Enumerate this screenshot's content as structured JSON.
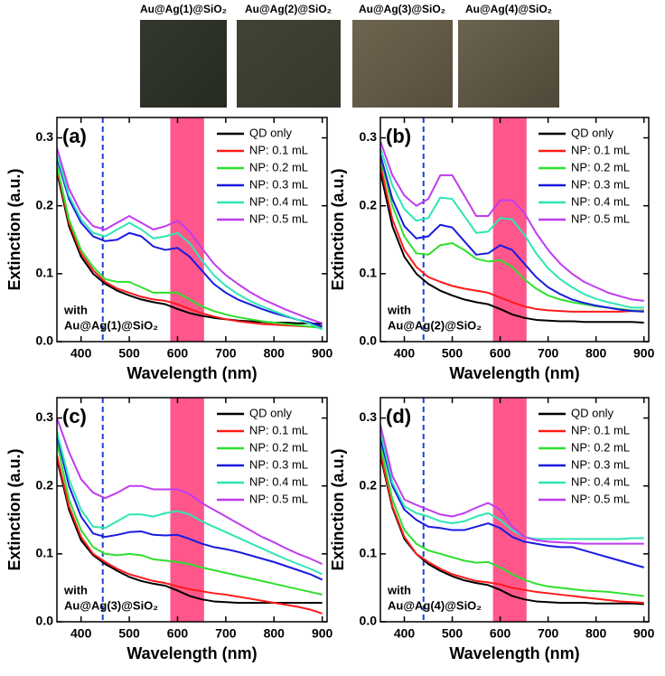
{
  "photos": {
    "labels": [
      "Au@Ag(1)@SiO₂",
      "Au@Ag(2)@SiO₂",
      "Au@Ag(3)@SiO₂",
      "Au@Ag(4)@SiO₂"
    ]
  },
  "chart_data": [
    {
      "type": "line",
      "panel_label": "(a)",
      "annotation": [
        "with",
        "Au@Ag(1)@SiO₂"
      ],
      "x_label": "Wavelength (nm)",
      "y_label": "Extinction (a.u.)",
      "xlim": [
        350,
        910
      ],
      "ylim": [
        0,
        0.33
      ],
      "xticks": [
        400,
        500,
        600,
        700,
        800,
        900
      ],
      "yticks": [
        {
          "value": 0,
          "label": "0.0"
        },
        0.1,
        0.2,
        0.3
      ],
      "legend": "upper right",
      "vline": 445,
      "vline_color": "#1f3fd8",
      "band": [
        585,
        655
      ],
      "band_color": "#ff2d6e",
      "x": [
        350,
        375,
        400,
        425,
        450,
        475,
        500,
        525,
        550,
        575,
        600,
        625,
        650,
        675,
        700,
        725,
        750,
        775,
        800,
        825,
        850,
        875,
        900
      ],
      "series": [
        {
          "name": "QD only",
          "color": "#000000",
          "values": [
            0.25,
            0.17,
            0.125,
            0.1,
            0.085,
            0.075,
            0.068,
            0.062,
            0.058,
            0.055,
            0.048,
            0.042,
            0.038,
            0.035,
            0.033,
            0.031,
            0.03,
            0.029,
            0.028,
            0.028,
            0.027,
            0.027,
            0.026
          ]
        },
        {
          "name": "NP: 0.1 mL",
          "color": "#ff1a1a",
          "values": [
            0.255,
            0.175,
            0.13,
            0.105,
            0.088,
            0.078,
            0.072,
            0.066,
            0.062,
            0.06,
            0.055,
            0.048,
            0.042,
            0.037,
            0.033,
            0.03,
            0.028,
            0.026,
            0.025,
            0.024,
            0.023,
            0.022,
            0.021
          ]
        },
        {
          "name": "NP: 0.2 mL",
          "color": "#2ee02e",
          "values": [
            0.26,
            0.18,
            0.135,
            0.11,
            0.092,
            0.088,
            0.088,
            0.08,
            0.072,
            0.072,
            0.072,
            0.062,
            0.052,
            0.045,
            0.04,
            0.036,
            0.033,
            0.03,
            0.028,
            0.026,
            0.024,
            0.022,
            0.02
          ]
        },
        {
          "name": "NP: 0.3 mL",
          "color": "#1a1ae0",
          "values": [
            0.27,
            0.21,
            0.175,
            0.155,
            0.148,
            0.15,
            0.16,
            0.155,
            0.14,
            0.135,
            0.138,
            0.125,
            0.105,
            0.085,
            0.072,
            0.062,
            0.055,
            0.048,
            0.042,
            0.037,
            0.032,
            0.028,
            0.022
          ]
        },
        {
          "name": "NP: 0.4 mL",
          "color": "#2ee6b4",
          "values": [
            0.275,
            0.215,
            0.18,
            0.16,
            0.155,
            0.165,
            0.175,
            0.165,
            0.152,
            0.155,
            0.16,
            0.145,
            0.12,
            0.098,
            0.082,
            0.07,
            0.06,
            0.052,
            0.045,
            0.038,
            0.032,
            0.026,
            0.018
          ]
        },
        {
          "name": "NP: 0.5 mL",
          "color": "#c03cf0",
          "values": [
            0.285,
            0.225,
            0.19,
            0.17,
            0.165,
            0.175,
            0.185,
            0.175,
            0.165,
            0.17,
            0.178,
            0.162,
            0.138,
            0.115,
            0.098,
            0.085,
            0.073,
            0.063,
            0.055,
            0.047,
            0.04,
            0.033,
            0.027
          ]
        }
      ]
    },
    {
      "type": "line",
      "panel_label": "(b)",
      "annotation": [
        "with",
        "Au@Ag(2)@SiO₂"
      ],
      "x_label": "Wavelength (nm)",
      "y_label": "Extinction (a.u.)",
      "xlim": [
        350,
        910
      ],
      "ylim": [
        0,
        0.33
      ],
      "xticks": [
        400,
        500,
        600,
        700,
        800,
        900
      ],
      "yticks": [
        {
          "value": 0,
          "label": "0.0"
        },
        0.1,
        0.2,
        0.3
      ],
      "legend": "upper right",
      "vline": 440,
      "vline_color": "#1f3fd8",
      "band": [
        585,
        655
      ],
      "band_color": "#ff2d6e",
      "x": [
        350,
        375,
        400,
        425,
        450,
        475,
        500,
        525,
        550,
        575,
        600,
        625,
        650,
        675,
        700,
        725,
        750,
        775,
        800,
        825,
        850,
        875,
        900
      ],
      "series": [
        {
          "name": "QD only",
          "color": "#000000",
          "values": [
            0.25,
            0.17,
            0.125,
            0.1,
            0.085,
            0.075,
            0.068,
            0.062,
            0.058,
            0.055,
            0.048,
            0.04,
            0.035,
            0.032,
            0.031,
            0.03,
            0.03,
            0.029,
            0.029,
            0.029,
            0.029,
            0.029,
            0.028
          ]
        },
        {
          "name": "NP: 0.1 mL",
          "color": "#ff1a1a",
          "values": [
            0.26,
            0.18,
            0.135,
            0.11,
            0.095,
            0.088,
            0.082,
            0.078,
            0.075,
            0.072,
            0.065,
            0.058,
            0.052,
            0.048,
            0.046,
            0.045,
            0.044,
            0.044,
            0.044,
            0.044,
            0.044,
            0.045,
            0.046
          ]
        },
        {
          "name": "NP: 0.2 mL",
          "color": "#2ee02e",
          "values": [
            0.27,
            0.2,
            0.155,
            0.13,
            0.128,
            0.142,
            0.145,
            0.135,
            0.122,
            0.118,
            0.12,
            0.11,
            0.092,
            0.078,
            0.068,
            0.062,
            0.058,
            0.055,
            0.052,
            0.05,
            0.048,
            0.046,
            0.045
          ]
        },
        {
          "name": "NP: 0.3 mL",
          "color": "#1a1ae0",
          "values": [
            0.275,
            0.21,
            0.17,
            0.152,
            0.155,
            0.172,
            0.168,
            0.148,
            0.128,
            0.13,
            0.142,
            0.135,
            0.115,
            0.095,
            0.08,
            0.07,
            0.062,
            0.057,
            0.053,
            0.05,
            0.047,
            0.045,
            0.044
          ]
        },
        {
          "name": "NP: 0.4 mL",
          "color": "#2ee6b4",
          "values": [
            0.285,
            0.23,
            0.195,
            0.178,
            0.182,
            0.212,
            0.21,
            0.185,
            0.16,
            0.162,
            0.182,
            0.18,
            0.158,
            0.13,
            0.108,
            0.092,
            0.08,
            0.07,
            0.063,
            0.058,
            0.054,
            0.05,
            0.05
          ]
        },
        {
          "name": "NP: 0.5 mL",
          "color": "#c03cf0",
          "values": [
            0.295,
            0.245,
            0.215,
            0.2,
            0.21,
            0.245,
            0.245,
            0.215,
            0.185,
            0.185,
            0.208,
            0.208,
            0.19,
            0.16,
            0.135,
            0.115,
            0.1,
            0.088,
            0.08,
            0.072,
            0.067,
            0.062,
            0.06
          ]
        }
      ]
    },
    {
      "type": "line",
      "panel_label": "(c)",
      "annotation": [
        "with",
        "Au@Ag(3)@SiO₂"
      ],
      "x_label": "Wavelength (nm)",
      "y_label": "Extinction (a.u.)",
      "xlim": [
        350,
        910
      ],
      "ylim": [
        0,
        0.33
      ],
      "xticks": [
        400,
        500,
        600,
        700,
        800,
        900
      ],
      "yticks": [
        {
          "value": 0,
          "label": "0.0"
        },
        0.1,
        0.2,
        0.3
      ],
      "legend": "upper right",
      "vline": 445,
      "vline_color": "#1f3fd8",
      "band": [
        585,
        655
      ],
      "band_color": "#ff2d6e",
      "x": [
        350,
        375,
        400,
        425,
        450,
        475,
        500,
        525,
        550,
        575,
        600,
        625,
        650,
        675,
        700,
        725,
        750,
        775,
        800,
        825,
        850,
        875,
        900
      ],
      "series": [
        {
          "name": "QD only",
          "color": "#000000",
          "values": [
            0.24,
            0.165,
            0.12,
            0.098,
            0.085,
            0.075,
            0.066,
            0.06,
            0.056,
            0.053,
            0.046,
            0.038,
            0.033,
            0.03,
            0.029,
            0.028,
            0.028,
            0.028,
            0.028,
            0.028,
            0.028,
            0.028,
            0.028
          ]
        },
        {
          "name": "NP: 0.1 mL",
          "color": "#ff1a1a",
          "values": [
            0.245,
            0.17,
            0.125,
            0.1,
            0.088,
            0.078,
            0.07,
            0.065,
            0.06,
            0.057,
            0.052,
            0.048,
            0.045,
            0.042,
            0.04,
            0.037,
            0.034,
            0.031,
            0.028,
            0.025,
            0.022,
            0.018,
            0.012
          ]
        },
        {
          "name": "NP: 0.2 mL",
          "color": "#2ee02e",
          "values": [
            0.265,
            0.18,
            0.135,
            0.11,
            0.1,
            0.098,
            0.1,
            0.098,
            0.092,
            0.09,
            0.088,
            0.085,
            0.08,
            0.076,
            0.072,
            0.068,
            0.064,
            0.06,
            0.056,
            0.052,
            0.048,
            0.044,
            0.04
          ]
        },
        {
          "name": "NP: 0.3 mL",
          "color": "#1a1ae0",
          "values": [
            0.275,
            0.2,
            0.155,
            0.13,
            0.125,
            0.128,
            0.132,
            0.133,
            0.128,
            0.127,
            0.128,
            0.122,
            0.115,
            0.11,
            0.107,
            0.103,
            0.098,
            0.093,
            0.088,
            0.082,
            0.076,
            0.07,
            0.062
          ]
        },
        {
          "name": "NP: 0.4 mL",
          "color": "#2ee6b4",
          "values": [
            0.28,
            0.21,
            0.165,
            0.14,
            0.138,
            0.148,
            0.158,
            0.158,
            0.155,
            0.16,
            0.163,
            0.158,
            0.148,
            0.14,
            0.132,
            0.124,
            0.116,
            0.108,
            0.1,
            0.092,
            0.085,
            0.078,
            0.07
          ]
        },
        {
          "name": "NP: 0.5 mL",
          "color": "#c03cf0",
          "values": [
            0.3,
            0.25,
            0.21,
            0.19,
            0.182,
            0.19,
            0.2,
            0.2,
            0.195,
            0.195,
            0.195,
            0.188,
            0.175,
            0.165,
            0.155,
            0.145,
            0.135,
            0.125,
            0.117,
            0.108,
            0.1,
            0.093,
            0.085
          ]
        }
      ]
    },
    {
      "type": "line",
      "panel_label": "(d)",
      "annotation": [
        "with",
        "Au@Ag(4)@SiO₂"
      ],
      "x_label": "Wavelength (nm)",
      "y_label": "Extinction (a.u.)",
      "xlim": [
        350,
        910
      ],
      "ylim": [
        0,
        0.33
      ],
      "xticks": [
        400,
        500,
        600,
        700,
        800,
        900
      ],
      "yticks": [
        {
          "value": 0,
          "label": "0.0"
        },
        0.1,
        0.2,
        0.3
      ],
      "legend": "upper right",
      "vline": 440,
      "vline_color": "#1f3fd8",
      "band": [
        585,
        655
      ],
      "band_color": "#ff2d6e",
      "x": [
        350,
        375,
        400,
        425,
        450,
        475,
        500,
        525,
        550,
        575,
        600,
        625,
        650,
        675,
        700,
        725,
        750,
        775,
        800,
        825,
        850,
        875,
        900
      ],
      "series": [
        {
          "name": "QD only",
          "color": "#000000",
          "values": [
            0.245,
            0.168,
            0.122,
            0.1,
            0.085,
            0.075,
            0.067,
            0.061,
            0.057,
            0.054,
            0.047,
            0.038,
            0.033,
            0.03,
            0.029,
            0.028,
            0.028,
            0.028,
            0.027,
            0.027,
            0.027,
            0.027,
            0.026
          ]
        },
        {
          "name": "NP: 0.1 mL",
          "color": "#ff1a1a",
          "values": [
            0.25,
            0.17,
            0.125,
            0.1,
            0.088,
            0.078,
            0.07,
            0.065,
            0.06,
            0.058,
            0.055,
            0.05,
            0.047,
            0.044,
            0.042,
            0.04,
            0.038,
            0.036,
            0.034,
            0.032,
            0.03,
            0.029,
            0.028
          ]
        },
        {
          "name": "NP: 0.2 mL",
          "color": "#2ee02e",
          "values": [
            0.26,
            0.18,
            0.135,
            0.115,
            0.105,
            0.1,
            0.095,
            0.09,
            0.087,
            0.088,
            0.08,
            0.07,
            0.062,
            0.056,
            0.052,
            0.05,
            0.048,
            0.046,
            0.045,
            0.044,
            0.042,
            0.04,
            0.038
          ]
        },
        {
          "name": "NP: 0.3 mL",
          "color": "#1a1ae0",
          "values": [
            0.27,
            0.2,
            0.165,
            0.15,
            0.14,
            0.138,
            0.135,
            0.135,
            0.14,
            0.145,
            0.138,
            0.125,
            0.118,
            0.115,
            0.112,
            0.11,
            0.11,
            0.105,
            0.1,
            0.095,
            0.09,
            0.085,
            0.08
          ]
        },
        {
          "name": "NP: 0.4 mL",
          "color": "#2ee6b4",
          "values": [
            0.28,
            0.205,
            0.17,
            0.16,
            0.155,
            0.148,
            0.145,
            0.148,
            0.155,
            0.16,
            0.15,
            0.135,
            0.125,
            0.122,
            0.122,
            0.122,
            0.122,
            0.122,
            0.122,
            0.122,
            0.122,
            0.123,
            0.123
          ]
        },
        {
          "name": "NP: 0.5 mL",
          "color": "#c03cf0",
          "values": [
            0.29,
            0.215,
            0.18,
            0.172,
            0.165,
            0.158,
            0.155,
            0.16,
            0.168,
            0.175,
            0.165,
            0.14,
            0.125,
            0.12,
            0.118,
            0.117,
            0.116,
            0.115,
            0.115,
            0.115,
            0.115,
            0.115,
            0.115
          ]
        }
      ]
    }
  ]
}
